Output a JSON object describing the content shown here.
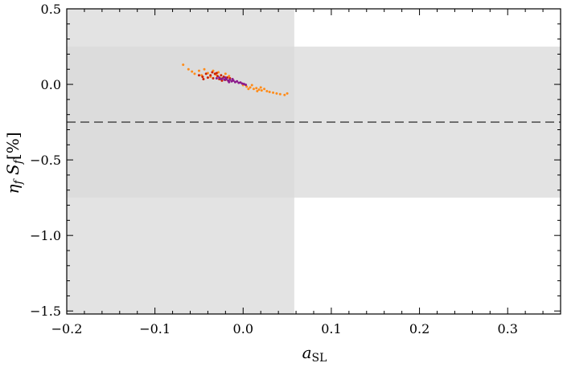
{
  "chart_data": {
    "type": "scatter",
    "title": "",
    "xlabel": {
      "main": "a",
      "sub": "SL"
    },
    "ylabel": {
      "eta": "η",
      "eta_sub": "f",
      "s": "S",
      "s_sub": "f",
      "unit": "[%]"
    },
    "xlim": [
      -0.2,
      0.36
    ],
    "ylim": [
      -1.52,
      0.5
    ],
    "x_ticks": [
      {
        "value": -0.2,
        "label": "−0.2"
      },
      {
        "value": -0.1,
        "label": "−0.1"
      },
      {
        "value": 0.0,
        "label": "0.0"
      },
      {
        "value": 0.1,
        "label": "0.1"
      },
      {
        "value": 0.2,
        "label": "0.2"
      },
      {
        "value": 0.3,
        "label": "0.3"
      }
    ],
    "y_ticks": [
      {
        "value": 0.5,
        "label": "0.5"
      },
      {
        "value": 0.0,
        "label": "0.0"
      },
      {
        "value": -0.5,
        "label": "−0.5"
      },
      {
        "value": -1.0,
        "label": "−1.0"
      },
      {
        "value": -1.5,
        "label": "−1.5"
      }
    ],
    "x_minor_step": 0.02,
    "y_minor_step": 0.1,
    "bands": [
      {
        "axis": "x",
        "from": -0.2,
        "to": 0.058,
        "color": "#d9d9d9",
        "opacity": 0.75
      },
      {
        "axis": "y",
        "from": -0.75,
        "to": 0.25,
        "color": "#d9d9d9",
        "opacity": 0.75
      }
    ],
    "reference_line": {
      "axis": "y",
      "value": -0.25,
      "style": "dashed",
      "color": "#555555"
    },
    "series": [
      {
        "color": "#ff8c1a",
        "points": [
          [
            -0.068,
            0.13
          ],
          [
            -0.062,
            0.1
          ],
          [
            -0.058,
            0.085
          ],
          [
            -0.055,
            0.07
          ],
          [
            -0.05,
            0.09
          ],
          [
            -0.047,
            0.06
          ],
          [
            -0.044,
            0.1
          ],
          [
            -0.04,
            0.075
          ],
          [
            -0.037,
            0.05
          ],
          [
            -0.034,
            0.09
          ],
          [
            -0.031,
            0.065
          ],
          [
            -0.028,
            0.08
          ],
          [
            -0.025,
            0.04
          ],
          [
            -0.02,
            0.07
          ],
          [
            -0.016,
            0.055
          ],
          [
            0.0,
            -0.005
          ],
          [
            0.004,
            -0.015
          ],
          [
            0.008,
            -0.02
          ],
          [
            0.012,
            -0.03
          ],
          [
            0.015,
            -0.025
          ],
          [
            0.018,
            -0.035
          ],
          [
            0.021,
            -0.04
          ],
          [
            0.024,
            -0.03
          ],
          [
            0.027,
            -0.045
          ],
          [
            0.03,
            -0.05
          ],
          [
            0.034,
            -0.055
          ],
          [
            0.038,
            -0.06
          ],
          [
            0.042,
            -0.065
          ],
          [
            0.047,
            -0.07
          ],
          [
            0.05,
            -0.06
          ],
          [
            0.01,
            -0.005
          ],
          [
            0.02,
            -0.02
          ],
          [
            0.006,
            -0.03
          ],
          [
            0.016,
            -0.045
          ]
        ]
      },
      {
        "color": "#cc2200",
        "points": [
          [
            -0.05,
            0.06
          ],
          [
            -0.046,
            0.05
          ],
          [
            -0.042,
            0.07
          ],
          [
            -0.04,
            0.045
          ],
          [
            -0.037,
            0.06
          ],
          [
            -0.034,
            0.04
          ],
          [
            -0.032,
            0.07
          ],
          [
            -0.029,
            0.055
          ],
          [
            -0.027,
            0.035
          ],
          [
            -0.025,
            0.06
          ],
          [
            -0.022,
            0.05
          ],
          [
            -0.02,
            0.03
          ],
          [
            -0.018,
            0.045
          ],
          [
            -0.035,
            0.08
          ],
          [
            -0.03,
            0.075
          ],
          [
            -0.045,
            0.035
          ],
          [
            -0.024,
            0.025
          ],
          [
            -0.015,
            0.04
          ]
        ]
      },
      {
        "color": "#8b1a8b",
        "points": [
          [
            -0.03,
            0.04
          ],
          [
            -0.027,
            0.045
          ],
          [
            -0.025,
            0.035
          ],
          [
            -0.023,
            0.04
          ],
          [
            -0.021,
            0.03
          ],
          [
            -0.019,
            0.035
          ],
          [
            -0.017,
            0.025
          ],
          [
            -0.015,
            0.03
          ],
          [
            -0.013,
            0.02
          ],
          [
            -0.011,
            0.025
          ],
          [
            -0.009,
            0.015
          ],
          [
            -0.007,
            0.02
          ],
          [
            -0.005,
            0.01
          ],
          [
            -0.003,
            0.012
          ],
          [
            -0.001,
            0.005
          ],
          [
            0.001,
            0.002
          ],
          [
            0.003,
            -0.003
          ],
          [
            -0.016,
            0.015
          ],
          [
            -0.02,
            0.045
          ],
          [
            -0.012,
            0.035
          ]
        ]
      }
    ]
  }
}
